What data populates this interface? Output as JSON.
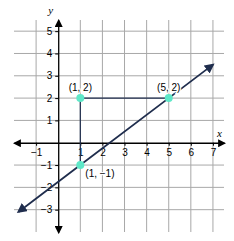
{
  "chart_data": {
    "type": "line",
    "x_label": "x",
    "y_label": "y",
    "xlim": [
      -2,
      7.5
    ],
    "ylim": [
      -4,
      5.5
    ],
    "xticks": [
      {
        "value": -1,
        "label": "−1"
      },
      1,
      2,
      3,
      4,
      5,
      6,
      7
    ],
    "yticks": [
      {
        "value": -3,
        "label": "−3"
      },
      {
        "value": -2,
        "label": "−2"
      },
      {
        "value": -1,
        "label": "−1"
      },
      1,
      2,
      3,
      4,
      5
    ],
    "grid": true,
    "series": [
      {
        "type": "line",
        "color": "#1f2d4d",
        "marker": "arrow",
        "line_style": "solid",
        "x": [
          -1.8,
          1,
          5,
          7
        ],
        "values": [
          -3.1,
          -1,
          2,
          3.5
        ]
      },
      {
        "type": "line",
        "color": "#1f2d4d",
        "line_style": "solid",
        "x": [
          1,
          1,
          5
        ],
        "values": [
          -1,
          2,
          2
        ]
      },
      {
        "type": "scatter",
        "color": "#5ee8c8",
        "marker": "circle",
        "x": [
          1,
          5,
          1
        ],
        "values": [
          2,
          2,
          -1
        ]
      }
    ],
    "annotations": [
      {
        "text": "(1, 2)",
        "x": 1,
        "y": 2
      },
      {
        "text": "(5, 2)",
        "x": 5,
        "y": 2
      },
      {
        "text": "(1, −1)",
        "x": 1,
        "y": -1
      }
    ]
  }
}
